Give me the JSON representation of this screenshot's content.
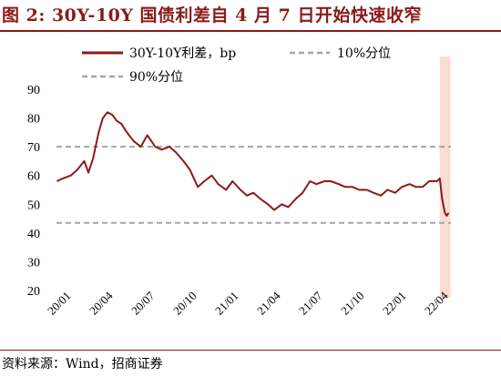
{
  "figure": {
    "title": "图 2:  30Y-10Y 国债利差自 4 月 7 日开始快速收窄",
    "source": "资料来源：Wind，招商证券"
  },
  "colors": {
    "title": "#8b1a1a",
    "series": "#8b1a1a",
    "reference": "#a6a6a6",
    "highlight": "#f9ddd2"
  },
  "chart_data": {
    "type": "line",
    "ylim": [
      20,
      90
    ],
    "yticks": [
      90,
      80,
      70,
      60,
      50,
      40,
      30,
      20
    ],
    "x_tick_labels": [
      "20/01",
      "20/04",
      "20/07",
      "20/10",
      "21/01",
      "21/04",
      "21/07",
      "21/10",
      "22/01",
      "22/04"
    ],
    "grid": false,
    "legend_position": "top",
    "series": [
      {
        "name": "30Y-10Y利差，bp",
        "style": "solid",
        "x": [
          "2020-01-02",
          "2020-01-15",
          "2020-02-01",
          "2020-02-15",
          "2020-03-01",
          "2020-03-10",
          "2020-03-20",
          "2020-04-01",
          "2020-04-10",
          "2020-04-20",
          "2020-05-01",
          "2020-05-10",
          "2020-05-20",
          "2020-06-01",
          "2020-06-15",
          "2020-07-01",
          "2020-07-15",
          "2020-08-01",
          "2020-08-15",
          "2020-09-01",
          "2020-09-15",
          "2020-10-01",
          "2020-10-15",
          "2020-11-01",
          "2020-11-15",
          "2020-12-01",
          "2020-12-15",
          "2021-01-01",
          "2021-01-15",
          "2021-02-01",
          "2021-02-15",
          "2021-03-01",
          "2021-03-15",
          "2021-04-01",
          "2021-04-15",
          "2021-05-01",
          "2021-05-15",
          "2021-06-01",
          "2021-06-15",
          "2021-07-01",
          "2021-07-15",
          "2021-08-01",
          "2021-08-15",
          "2021-09-01",
          "2021-09-15",
          "2021-10-01",
          "2021-10-15",
          "2021-11-01",
          "2021-11-15",
          "2021-12-01",
          "2021-12-15",
          "2022-01-01",
          "2022-01-15",
          "2022-02-01",
          "2022-02-15",
          "2022-03-01",
          "2022-03-15",
          "2022-04-01",
          "2022-04-07",
          "2022-04-12",
          "2022-04-18",
          "2022-04-22",
          "2022-04-26"
        ],
        "values": [
          58,
          59,
          60,
          62,
          65,
          61,
          66,
          75,
          80,
          82,
          81,
          79,
          78,
          75,
          72,
          70,
          74,
          70,
          69,
          70,
          68,
          65,
          62,
          56,
          58,
          60,
          57,
          55,
          58,
          55,
          53,
          54,
          52,
          50,
          48,
          50,
          49,
          52,
          54,
          58,
          57,
          58,
          58,
          57,
          56,
          56,
          55,
          55,
          54,
          53,
          55,
          54,
          56,
          57,
          56,
          56,
          58,
          58,
          59,
          52,
          47,
          46,
          47
        ]
      },
      {
        "name": "10%分位",
        "style": "dashed",
        "value": 43.5
      },
      {
        "name": "90%分位",
        "style": "dashed",
        "value": 70
      }
    ],
    "highlight_band": {
      "from": "2022-04-07",
      "to": "2022-04-30"
    }
  }
}
